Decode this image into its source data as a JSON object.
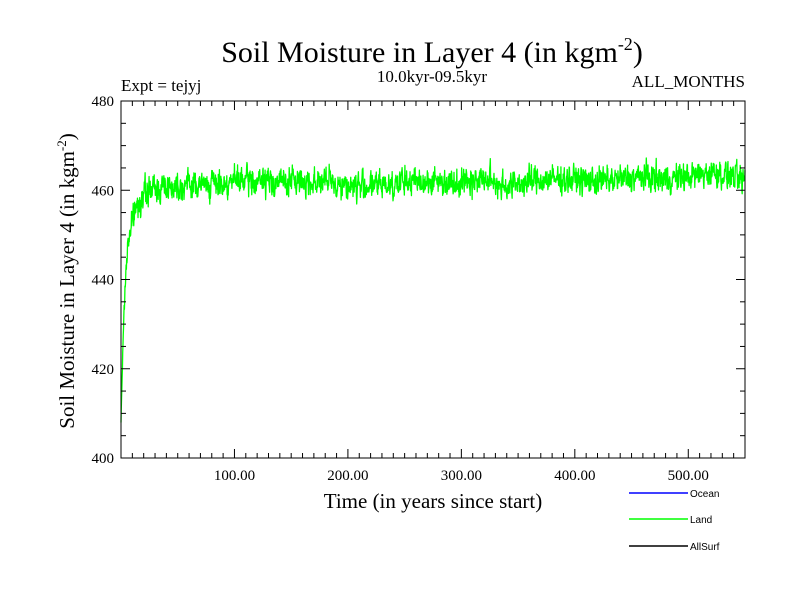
{
  "chart_data": {
    "type": "line",
    "title_main": "Soil Moisture in Layer 4 (in kgm",
    "title_sup": "-2",
    "title_close": ")",
    "subtitle_left": "Expt = tejyj",
    "subtitle_center": "10.0kyr-09.5kyr",
    "subtitle_right": "ALL_MONTHS",
    "xlabel": "Time (in years since start)",
    "ylabel_main": "Soil Moisture in Layer 4 (in kgm",
    "ylabel_sup": "-2",
    "ylabel_close": ")",
    "xlim": [
      0,
      550
    ],
    "ylim": [
      400,
      480
    ],
    "x_ticks": [
      100,
      200,
      300,
      400,
      500
    ],
    "x_tick_labels": [
      "100.00",
      "200.00",
      "300.00",
      "400.00",
      "500.00"
    ],
    "y_ticks": [
      400,
      420,
      440,
      460,
      480
    ],
    "y_tick_labels": [
      "400",
      "420",
      "440",
      "460",
      "480"
    ],
    "series": [
      {
        "name": "Ocean",
        "color": "#0000ff",
        "description": "no visible data"
      },
      {
        "name": "Land",
        "color": "#00ff00",
        "x": [
          0,
          1,
          2,
          3,
          4,
          5,
          6,
          8,
          10,
          12,
          15,
          20,
          25,
          30,
          40,
          50,
          60,
          70,
          80,
          90,
          100,
          120,
          140,
          160,
          180,
          200,
          220,
          240,
          260,
          280,
          300,
          320,
          340,
          360,
          380,
          400,
          420,
          440,
          460,
          480,
          500,
          520,
          540,
          550
        ],
        "values": [
          408,
          418,
          428,
          435,
          440,
          445,
          448,
          451,
          453,
          455,
          457,
          459,
          460,
          460.5,
          461,
          461,
          461.5,
          461,
          461.5,
          461.5,
          462,
          462,
          462,
          462,
          462,
          461,
          461,
          461.5,
          462,
          462,
          462,
          462.5,
          461,
          462,
          462.5,
          462.5,
          462,
          462.5,
          463,
          462.5,
          463,
          464,
          463,
          462
        ],
        "noise_amplitude": 4
      },
      {
        "name": "AllSurf",
        "color": "#000000",
        "description": "no visible data"
      }
    ]
  }
}
